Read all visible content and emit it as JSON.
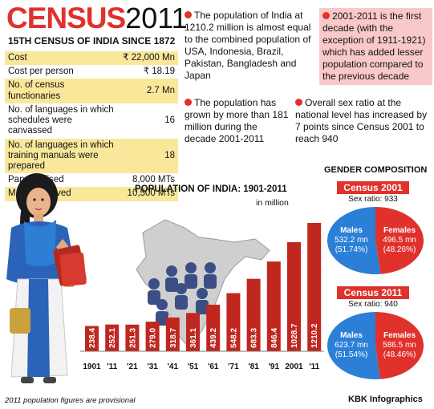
{
  "header": {
    "title_word": "CENSUS",
    "title_year": "2011",
    "subtitle": "15TH CENSUS OF INDIA SINCE 1872"
  },
  "stats": [
    {
      "label": "Cost",
      "value": "₹ 22,000 Mn"
    },
    {
      "label": "Cost per person",
      "value": "₹ 18.19"
    },
    {
      "label": "No. of census functionaries",
      "value": "2.7 Mn"
    },
    {
      "label": "No. of languages in which schedules were canvassed",
      "value": "16"
    },
    {
      "label": "No. of languages in which training manuals were prepared",
      "value": "18"
    },
    {
      "label": "Paper utilised",
      "value": "8,000 MTs"
    },
    {
      "label": "Material moved",
      "value": "10,500 MTs"
    }
  ],
  "facts": [
    "The population of India at 1210.2 million is almost equal to the combined population of USA, Indonesia, Brazil, Pakistan, Bangladesh and Japan",
    "2001-2011 is the first decade (with the exception of 1911-1921) which has added lesser population compared to the previous decade",
    "The population has grown by more than 181 million during the decade 2001-2011",
    "Overall sex ratio at the national level has increased by 7 points since Census 2001 to reach 940"
  ],
  "gender": {
    "title": "GENDER COMPOSITION",
    "census": [
      {
        "banner": "Census 2001",
        "sex_ratio": "Sex ratio: 933",
        "males_label": "Males",
        "males_value": "532.2 mn",
        "males_pct": "(51.74%)",
        "females_label": "Females",
        "females_value": "496.5 mn",
        "females_pct": "(48.26%)"
      },
      {
        "banner": "Census 2011",
        "sex_ratio": "Sex ratio: 940",
        "males_label": "Males",
        "males_value": "623.7 mn",
        "males_pct": "(51.54%)",
        "females_label": "Females",
        "females_value": "586.5 mn",
        "females_pct": "(48.46%)"
      }
    ]
  },
  "colors": {
    "accent_red": "#e0312c",
    "bar_red": "#c0271f",
    "male_blue": "#2b7fd6",
    "table_yellow": "#f9e79a",
    "box_pink": "#f9c9c9"
  },
  "chart_data": [
    {
      "type": "bar",
      "title": "POPULATION OF INDIA: 1901-2011",
      "ylabel": "in million",
      "categories": [
        "1901",
        "'11",
        "'21",
        "'31",
        "'41",
        "'51",
        "'61",
        "'71",
        "'81",
        "'91",
        "2001",
        "'11"
      ],
      "values": [
        238.4,
        252.1,
        251.3,
        279.0,
        318.7,
        361.1,
        439.2,
        548.2,
        683.3,
        846.4,
        1028.7,
        1210.2
      ],
      "labels": [
        "238.4",
        "252.1",
        "251.3",
        "279.0",
        "318.7",
        "361.1",
        "439.2",
        "548.2",
        "683.3",
        "846.4",
        "1028.7",
        "1210.2"
      ],
      "ylim": [
        0,
        1210.2
      ]
    },
    {
      "type": "pie",
      "title": "Census 2001",
      "categories": [
        "Males",
        "Females"
      ],
      "values": [
        532.2,
        496.5
      ],
      "percentages": [
        51.74,
        48.26
      ]
    },
    {
      "type": "pie",
      "title": "Census 2011",
      "categories": [
        "Males",
        "Females"
      ],
      "values": [
        623.7,
        586.5
      ],
      "percentages": [
        51.54,
        48.46
      ]
    }
  ],
  "footer": {
    "footnote": "2011 population figures are provisional",
    "credit_brand": "KBK",
    "credit_rest": "Infographics"
  }
}
